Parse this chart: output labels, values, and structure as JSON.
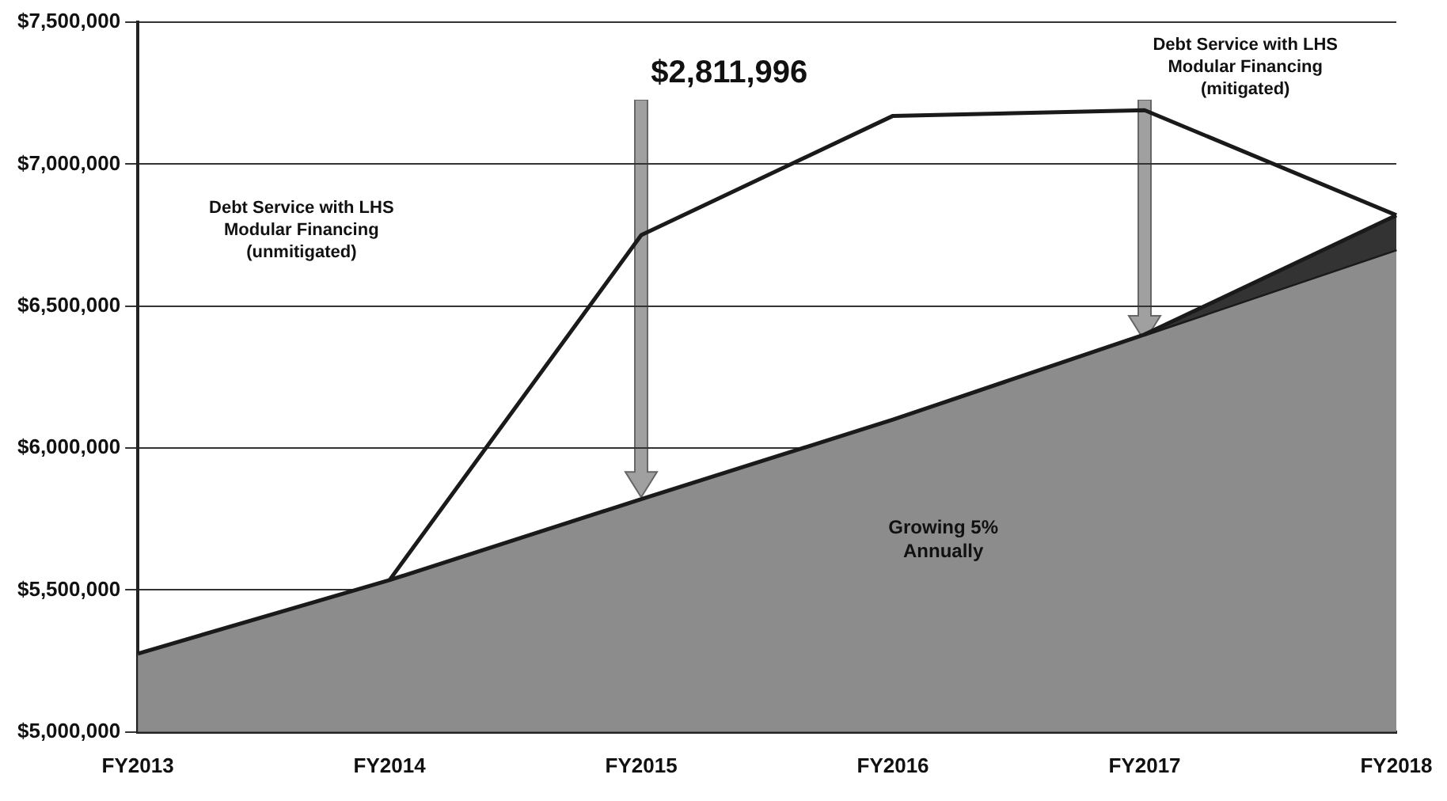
{
  "chart_data": {
    "type": "line",
    "categories": [
      "FY2013",
      "FY2014",
      "FY2015",
      "FY2016",
      "FY2017",
      "FY2018"
    ],
    "series": [
      {
        "type": "area",
        "color": "#8c8c8c",
        "values": [
          5276000,
          5535000,
          5820000,
          6100000,
          6400000,
          6700000
        ]
      },
      {
        "color": "#1a1a1a",
        "values": [
          null,
          5535000,
          6750000,
          7170000,
          7190000,
          6820000
        ]
      },
      {
        "type": "area",
        "color": "#333333",
        "values": [
          null,
          null,
          null,
          null,
          6400000,
          6820000
        ]
      }
    ],
    "ylim": [
      5000000,
      7500000
    ],
    "yticks": [
      {
        "value": 5000000,
        "label": "$5,000,000"
      },
      {
        "value": 5500000,
        "label": "$5,500,000"
      },
      {
        "value": 6000000,
        "label": "$6,000,000"
      },
      {
        "value": 6500000,
        "label": "$6,500,000"
      },
      {
        "value": 7000000,
        "label": "$7,000,000"
      },
      {
        "value": 7500000,
        "label": "$7,500,000"
      }
    ],
    "grid": "y",
    "legend": false,
    "marker": "none",
    "line_style": "solid",
    "annotations": [
      "$2,811,996",
      "Debt Service with LHS\nModular Financing\n(unmitigated)",
      "Debt Service with LHS\nModular Financing\n(mitigated)",
      "Growing 5%\nAnnually"
    ]
  }
}
